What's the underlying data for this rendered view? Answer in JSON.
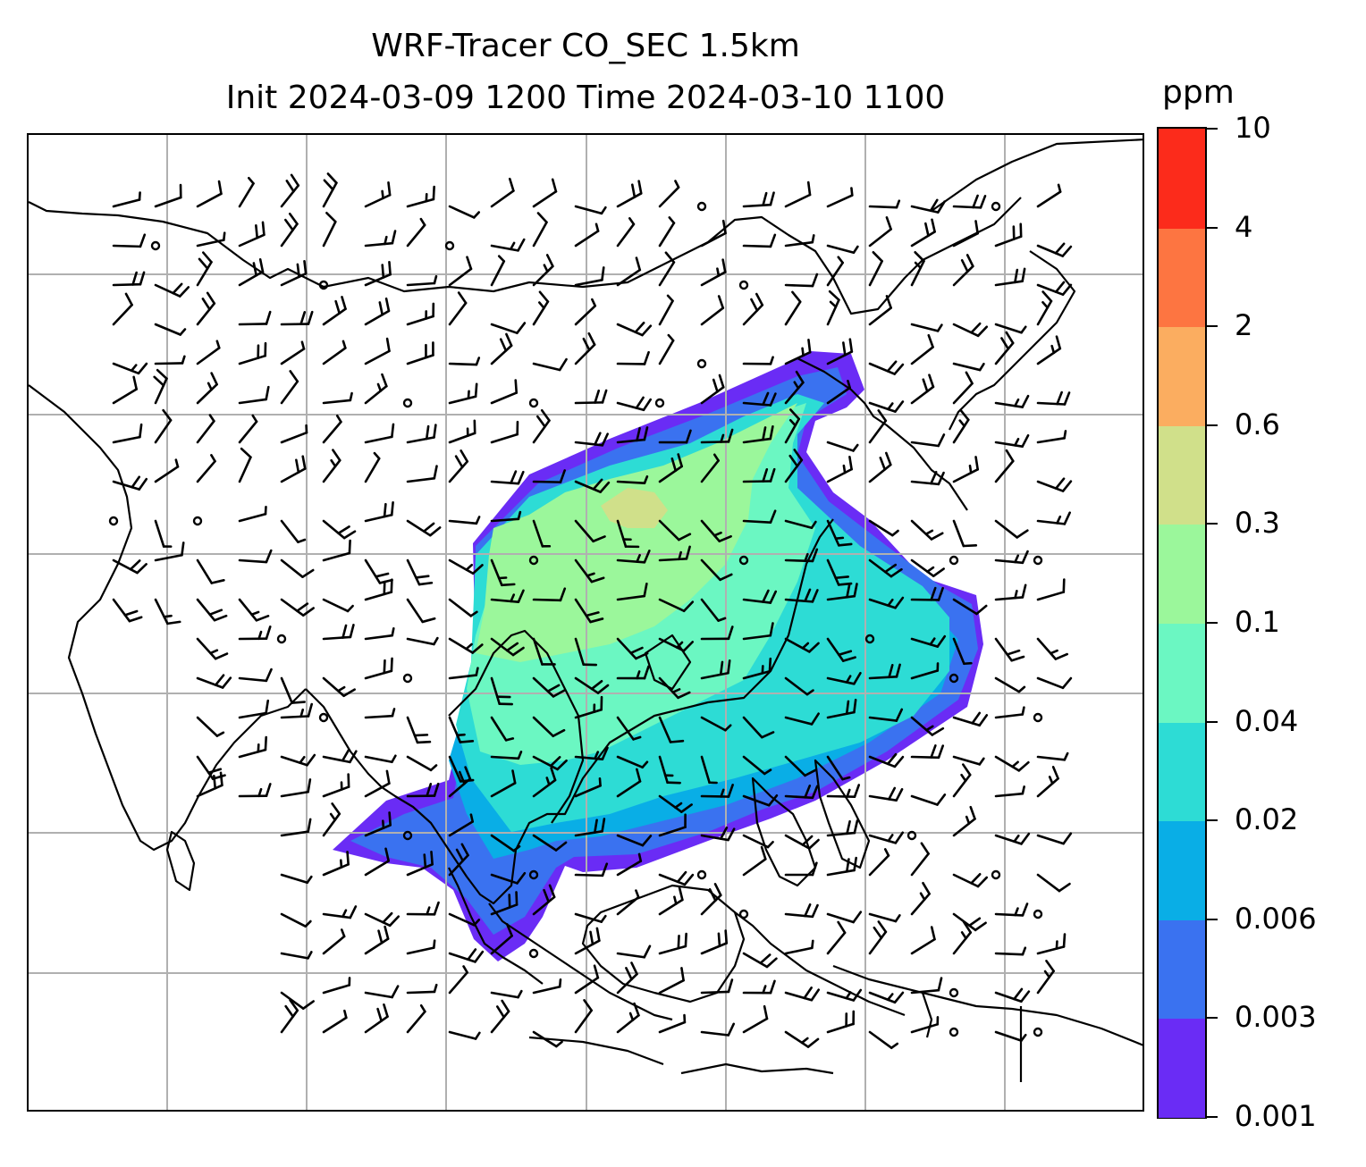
{
  "title": {
    "line1": "WRF-Tracer CO_SEC 1.5km",
    "line2": "Init 2024-03-09 1200 Time 2024-03-10 1100"
  },
  "colorbar": {
    "unit": "ppm",
    "levels": [
      "0.001",
      "0.003",
      "0.006",
      "0.02",
      "0.04",
      "0.1",
      "0.3",
      "0.6",
      "2",
      "4",
      "10"
    ],
    "colors": [
      "#6a2cf5",
      "#3a72f0",
      "#09aee6",
      "#2ddcd5",
      "#6bf7c2",
      "#9bf79b",
      "#d0e08a",
      "#fbad60",
      "#fd7541",
      "#fc2b1b"
    ]
  },
  "map": {
    "gridlines": "on",
    "gridline_color": "#b0b0b0",
    "coastline_color": "#000000",
    "wind_barb_color": "#000000"
  }
}
